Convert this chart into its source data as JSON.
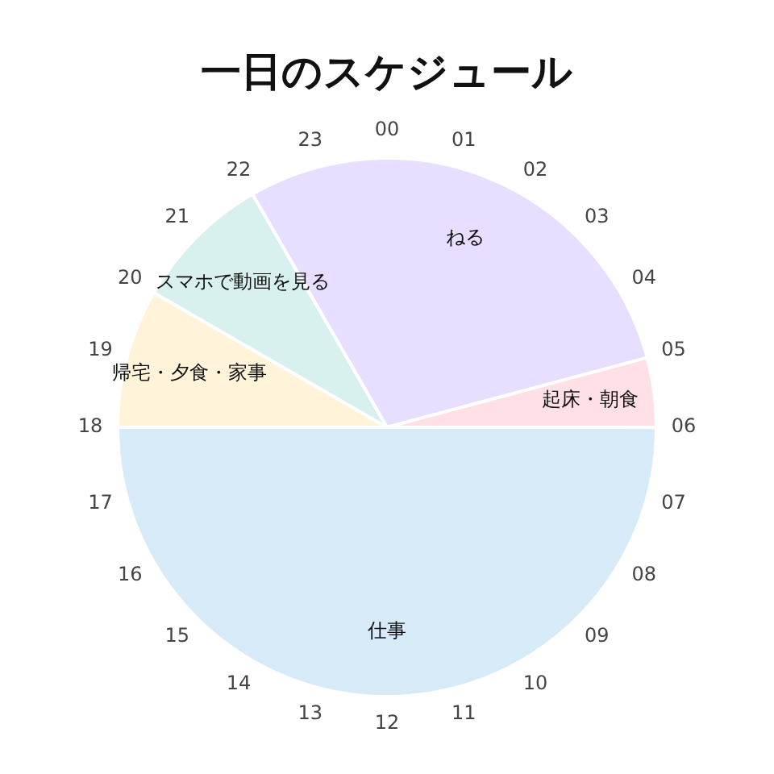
{
  "chart_data": {
    "type": "pie",
    "title": "一日のスケジュール",
    "categories": [
      "ねる",
      "起床・朝食",
      "仕事",
      "帰宅・夕食・家事",
      "スマホで動画を見る"
    ],
    "values": [
      29.17,
      4.17,
      50,
      8.33,
      8.33
    ],
    "colors": [
      "#e8deff",
      "#ffe0e6",
      "#d6eaf8",
      "#fff3d9",
      "#d8f1ef"
    ],
    "annotations": [
      "00",
      "01",
      "02",
      "03",
      "04",
      "05",
      "06",
      "07",
      "08",
      "09",
      "10",
      "11",
      "12",
      "13",
      "14",
      "15",
      "16",
      "17",
      "18",
      "19",
      "20",
      "21",
      "22",
      "23"
    ],
    "legend": false
  }
}
